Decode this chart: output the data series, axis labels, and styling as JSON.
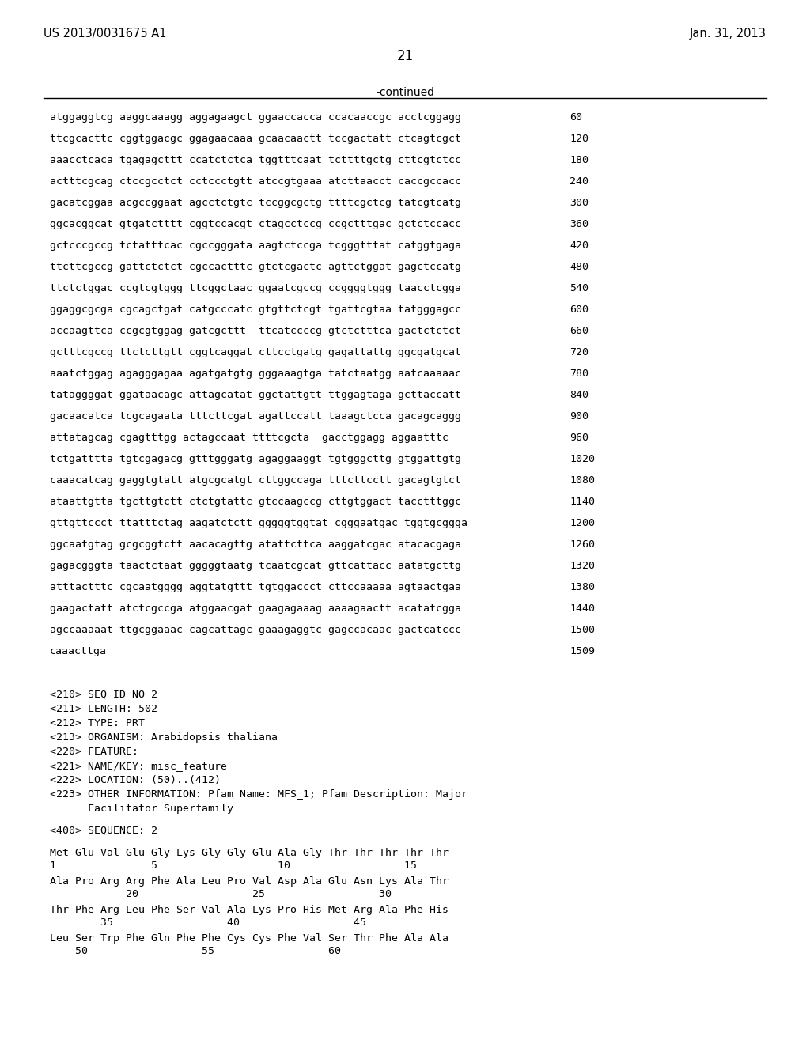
{
  "patent_number": "US 2013/0031675 A1",
  "date": "Jan. 31, 2013",
  "page_number": "21",
  "continued_label": "-continued",
  "background_color": "#ffffff",
  "text_color": "#000000",
  "sequence_lines": [
    [
      "atggaggtcg aaggcaaagg aggagaagct ggaaccacca ccacaaccgc acctcggagg",
      "60"
    ],
    [
      "ttcgcacttc cggtggacgc ggagaacaaa gcaacaactt tccgactatt ctcagtcgct",
      "120"
    ],
    [
      "aaacctcaca tgagagcttt ccatctctca tggtttcaat tcttttgctg cttcgtctcc",
      "180"
    ],
    [
      "actttcgcag ctccgcctct cctccctgtt atccgtgaaa atcttaacct caccgccacc",
      "240"
    ],
    [
      "gacatcggaa acgccggaat agcctctgtc tccggcgctg ttttcgctcg tatcgtcatg",
      "300"
    ],
    [
      "ggcacggcat gtgatctttt cggtccacgt ctagcctccg ccgctttgac gctctccacc",
      "360"
    ],
    [
      "gctcccgccg tctatttcac cgccgggata aagtctccga tcgggtttat catggtgaga",
      "420"
    ],
    [
      "ttcttcgccg gattctctct cgccactttc gtctcgactc agttctggat gagctccatg",
      "480"
    ],
    [
      "ttctctggac ccgtcgtggg ttcggctaac ggaatcgccg ccggggtggg taacctcgga",
      "540"
    ],
    [
      "ggaggcgcga cgcagctgat catgcccatc gtgttctcgt tgattcgtaa tatgggagcc",
      "600"
    ],
    [
      "accaagttca ccgcgtggag gatcgcttt  ttcatccccg gtctctttca gactctctct",
      "660"
    ],
    [
      "gctttcgccg ttctcttgtt cggtcaggat cttcctgatg gagattattg ggcgatgcat",
      "720"
    ],
    [
      "aaatctggag agagggagaa agatgatgtg gggaaagtga tatctaatgg aatcaaaaac",
      "780"
    ],
    [
      "tataggggat ggataacagc attagcatat ggctattgtt ttggagtaga gcttaccatt",
      "840"
    ],
    [
      "gacaacatca tcgcagaata tttcttcgat agattccatt taaagctcca gacagcaggg",
      "900"
    ],
    [
      "attatagcag cgagtttgg actagccaat ttttcgcta  gacctggagg aggaatttc",
      "960"
    ],
    [
      "tctgatttta tgtcgagacg gtttgggatg agaggaaggt tgtgggcttg gtggattgtg",
      "1020"
    ],
    [
      "caaacatcag gaggtgtatt atgcgcatgt cttggccaga tttcttcctt gacagtgtct",
      "1080"
    ],
    [
      "ataattgtta tgcttgtctt ctctgtattc gtccaagccg cttgtggact tacctttggc",
      "1140"
    ],
    [
      "gttgttccct ttatttctag aagatctctt gggggtggtat cgggaatgac tggtgcggga",
      "1200"
    ],
    [
      "ggcaatgtag gcgcggtctt aacacagttg atattcttca aaggatcgac atacacgaga",
      "1260"
    ],
    [
      "gagacgggta taactctaat gggggtaatg tcaatcgcat gttcattacc aatatgcttg",
      "1320"
    ],
    [
      "atttactttc cgcaatgggg aggtatgttt tgtggaccct cttccaaaaa agtaactgaa",
      "1380"
    ],
    [
      "gaagactatt atctcgccga atggaacgat gaagagaaag aaaagaactt acatatcgga",
      "1440"
    ],
    [
      "agccaaaaat ttgcggaaac cagcattagc gaaagaggtc gagccacaac gactcatccc",
      "1500"
    ],
    [
      "caaacttga",
      "1509"
    ]
  ],
  "metadata_lines": [
    "<210> SEQ ID NO 2",
    "<211> LENGTH: 502",
    "<212> TYPE: PRT",
    "<213> ORGANISM: Arabidopsis thaliana",
    "<220> FEATURE:",
    "<221> NAME/KEY: misc_feature",
    "<222> LOCATION: (50)..(412)",
    "<223> OTHER INFORMATION: Pfam Name: MFS_1; Pfam Description: Major",
    "      Facilitator Superfamily"
  ],
  "sequence_header": "<400> SEQUENCE: 2",
  "protein_lines": [
    {
      "seq": "Met Glu Val Glu Gly Lys Gly Gly Glu Ala Gly Thr Thr Thr Thr Thr",
      "nums": "1               5                   10                  15"
    },
    {
      "seq": "Ala Pro Arg Arg Phe Ala Leu Pro Val Asp Ala Glu Asn Lys Ala Thr",
      "nums": "            20                  25                  30"
    },
    {
      "seq": "Thr Phe Arg Leu Phe Ser Val Ala Lys Pro His Met Arg Ala Phe His",
      "nums": "        35                  40                  45"
    },
    {
      "seq": "Leu Ser Trp Phe Gln Phe Phe Cys Cys Phe Val Ser Thr Phe Ala Ala",
      "nums": "    50                  55                  60"
    }
  ]
}
